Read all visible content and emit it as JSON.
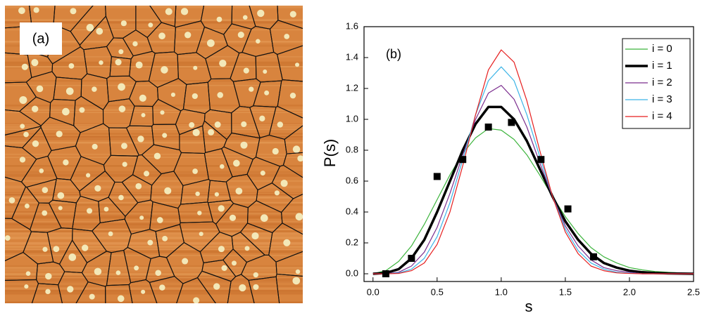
{
  "image_label": "(a)",
  "chart_data": {
    "type": "line",
    "annotation": "(b)",
    "xlabel": "s",
    "ylabel": "P(s)",
    "x": [
      0.0,
      0.1,
      0.2,
      0.3,
      0.4,
      0.5,
      0.6,
      0.7,
      0.8,
      0.9,
      1.0,
      1.1,
      1.2,
      1.3,
      1.4,
      1.5,
      1.6,
      1.7,
      1.8,
      1.9,
      2.0,
      2.1,
      2.2,
      2.3,
      2.4,
      2.5
    ],
    "series": [
      {
        "name": "i = 0",
        "color": "#3cb43c",
        "line_width": 1.2,
        "values": [
          0,
          0.02,
          0.08,
          0.18,
          0.32,
          0.48,
          0.64,
          0.78,
          0.88,
          0.94,
          0.93,
          0.87,
          0.77,
          0.64,
          0.5,
          0.37,
          0.26,
          0.17,
          0.11,
          0.07,
          0.04,
          0.025,
          0.015,
          0.01,
          0.005,
          0.003
        ]
      },
      {
        "name": "i = 1",
        "color": "#000000",
        "line_width": 3.5,
        "values": [
          0,
          0.005,
          0.03,
          0.1,
          0.22,
          0.4,
          0.6,
          0.8,
          0.97,
          1.08,
          1.08,
          1.0,
          0.86,
          0.68,
          0.5,
          0.34,
          0.22,
          0.13,
          0.07,
          0.04,
          0.02,
          0.01,
          0.005,
          0.002,
          0.001,
          0
        ]
      },
      {
        "name": "i = 2",
        "color": "#7b2d8e",
        "line_width": 1.2,
        "values": [
          0,
          0,
          0.01,
          0.05,
          0.14,
          0.3,
          0.52,
          0.77,
          1.0,
          1.17,
          1.22,
          1.13,
          0.95,
          0.72,
          0.5,
          0.31,
          0.18,
          0.09,
          0.04,
          0.02,
          0.01,
          0,
          0,
          0,
          0,
          0
        ]
      },
      {
        "name": "i = 3",
        "color": "#3cb4e6",
        "line_width": 1.2,
        "values": [
          0,
          0,
          0.005,
          0.03,
          0.1,
          0.24,
          0.46,
          0.74,
          1.03,
          1.25,
          1.34,
          1.25,
          1.03,
          0.76,
          0.5,
          0.29,
          0.15,
          0.07,
          0.03,
          0.01,
          0.004,
          0,
          0,
          0,
          0,
          0
        ]
      },
      {
        "name": "i = 4",
        "color": "#e61e1e",
        "line_width": 1.2,
        "values": [
          0,
          0,
          0.002,
          0.02,
          0.07,
          0.19,
          0.4,
          0.7,
          1.03,
          1.32,
          1.45,
          1.37,
          1.12,
          0.8,
          0.5,
          0.27,
          0.13,
          0.05,
          0.02,
          0.006,
          0.002,
          0,
          0,
          0,
          0,
          0
        ]
      }
    ],
    "markers": {
      "color": "#000000",
      "x": [
        0.1,
        0.3,
        0.5,
        0.7,
        0.9,
        1.08,
        1.31,
        1.52,
        1.72
      ],
      "values": [
        0.0,
        0.1,
        0.63,
        0.74,
        0.95,
        0.98,
        0.74,
        0.42,
        0.11
      ]
    },
    "xlim": [
      -0.07,
      2.5
    ],
    "ylim": [
      -0.05,
      1.6
    ],
    "xticks": [
      {
        "value": 0,
        "label": "0.0"
      },
      0.5,
      {
        "value": 1,
        "label": "1.0"
      },
      1.5,
      {
        "value": 2,
        "label": "2.0"
      },
      2.5
    ],
    "yticks": [
      {
        "value": 0,
        "label": "0.0"
      },
      0.2,
      0.4,
      0.6,
      0.8,
      {
        "value": 1,
        "label": "1.0"
      },
      1.2,
      1.4,
      1.6
    ],
    "grid": false,
    "legend": "upper right"
  }
}
